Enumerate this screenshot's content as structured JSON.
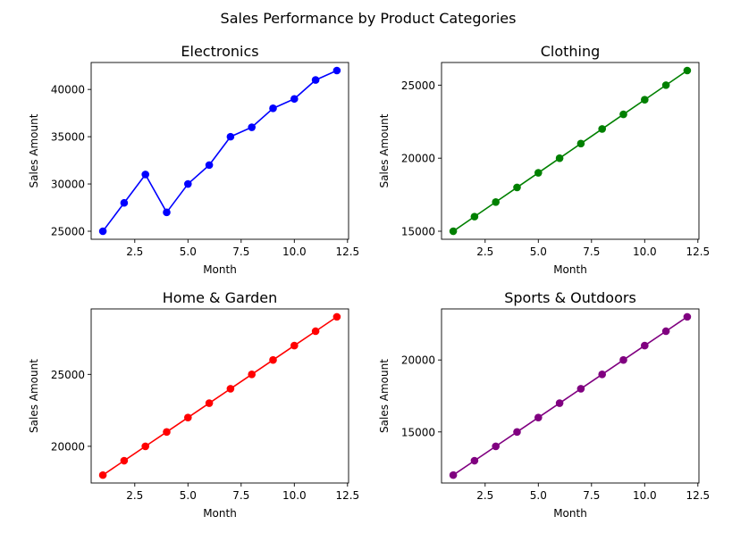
{
  "figure": {
    "suptitle": "Sales Performance by Product Categories"
  },
  "chart_data": [
    {
      "type": "line",
      "title": "Electronics",
      "xlabel": "Month",
      "ylabel": "Sales Amount",
      "color": "#0000ff",
      "x": [
        1,
        2,
        3,
        4,
        5,
        6,
        7,
        8,
        9,
        10,
        11,
        12
      ],
      "values": [
        25000,
        28000,
        31000,
        27000,
        30000,
        32000,
        35000,
        36000,
        38000,
        39000,
        41000,
        42000
      ],
      "xlim": [
        0.45,
        12.55
      ],
      "ylim": [
        24150,
        42850
      ],
      "xticks": [
        2.5,
        5.0,
        7.5,
        10.0,
        12.5
      ],
      "xtick_labels": [
        "2.5",
        "5.0",
        "7.5",
        "10.0",
        "12.5"
      ],
      "yticks": [
        25000,
        30000,
        35000,
        40000
      ],
      "ytick_labels": [
        "25000",
        "30000",
        "35000",
        "40000"
      ],
      "grid": false
    },
    {
      "type": "line",
      "title": "Clothing",
      "xlabel": "Month",
      "ylabel": "Sales Amount",
      "color": "#008000",
      "x": [
        1,
        2,
        3,
        4,
        5,
        6,
        7,
        8,
        9,
        10,
        11,
        12
      ],
      "values": [
        15000,
        16000,
        17000,
        18000,
        19000,
        20000,
        21000,
        22000,
        23000,
        24000,
        25000,
        26000
      ],
      "xlim": [
        0.45,
        12.55
      ],
      "ylim": [
        14450,
        26550
      ],
      "xticks": [
        2.5,
        5.0,
        7.5,
        10.0,
        12.5
      ],
      "xtick_labels": [
        "2.5",
        "5.0",
        "7.5",
        "10.0",
        "12.5"
      ],
      "yticks": [
        15000,
        20000,
        25000
      ],
      "ytick_labels": [
        "15000",
        "20000",
        "25000"
      ],
      "grid": false
    },
    {
      "type": "line",
      "title": "Home & Garden",
      "xlabel": "Month",
      "ylabel": "Sales Amount",
      "color": "#ff0000",
      "x": [
        1,
        2,
        3,
        4,
        5,
        6,
        7,
        8,
        9,
        10,
        11,
        12
      ],
      "values": [
        18000,
        19000,
        20000,
        21000,
        22000,
        23000,
        24000,
        25000,
        26000,
        27000,
        28000,
        29000
      ],
      "xlim": [
        0.45,
        12.55
      ],
      "ylim": [
        17450,
        29550
      ],
      "xticks": [
        2.5,
        5.0,
        7.5,
        10.0,
        12.5
      ],
      "xtick_labels": [
        "2.5",
        "5.0",
        "7.5",
        "10.0",
        "12.5"
      ],
      "yticks": [
        20000,
        25000
      ],
      "ytick_labels": [
        "20000",
        "25000"
      ],
      "grid": false
    },
    {
      "type": "line",
      "title": "Sports & Outdoors",
      "xlabel": "Month",
      "ylabel": "Sales Amount",
      "color": "#800080",
      "x": [
        1,
        2,
        3,
        4,
        5,
        6,
        7,
        8,
        9,
        10,
        11,
        12
      ],
      "values": [
        12000,
        13000,
        14000,
        15000,
        16000,
        17000,
        18000,
        19000,
        20000,
        21000,
        22000,
        23000
      ],
      "xlim": [
        0.45,
        12.55
      ],
      "ylim": [
        11450,
        23550
      ],
      "xticks": [
        2.5,
        5.0,
        7.5,
        10.0,
        12.5
      ],
      "xtick_labels": [
        "2.5",
        "5.0",
        "7.5",
        "10.0",
        "12.5"
      ],
      "yticks": [
        15000,
        20000
      ],
      "ytick_labels": [
        "15000",
        "20000"
      ],
      "grid": false
    }
  ]
}
